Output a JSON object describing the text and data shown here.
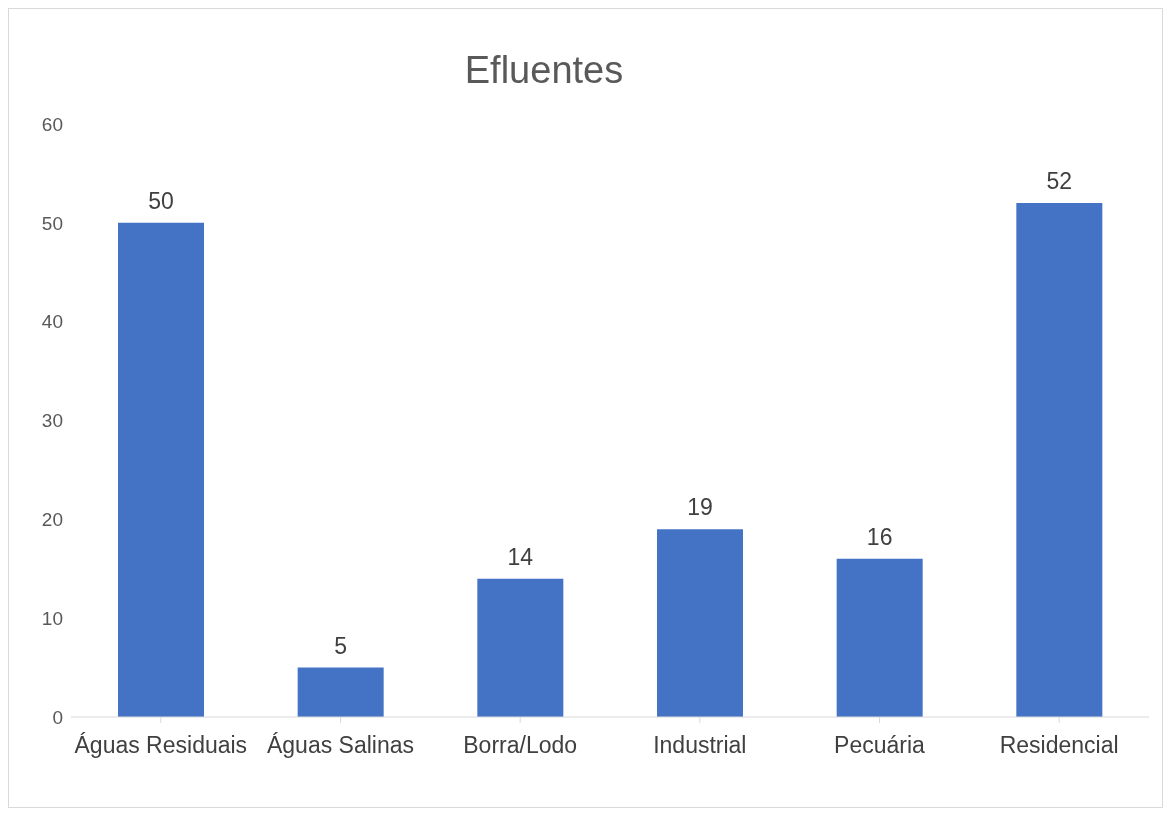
{
  "chart_data": {
    "type": "bar",
    "title": "Efluentes",
    "categories": [
      "Águas Residuais",
      "Águas Salinas",
      "Borra/Lodo",
      "Industrial",
      "Pecuária",
      "Residencial"
    ],
    "values": [
      50,
      5,
      14,
      19,
      16,
      52
    ],
    "color": "#4472c4",
    "ylim": [
      0,
      60
    ],
    "yticks": [
      0,
      10,
      20,
      30,
      40,
      50,
      60
    ],
    "grid": false,
    "data_labels": true
  }
}
